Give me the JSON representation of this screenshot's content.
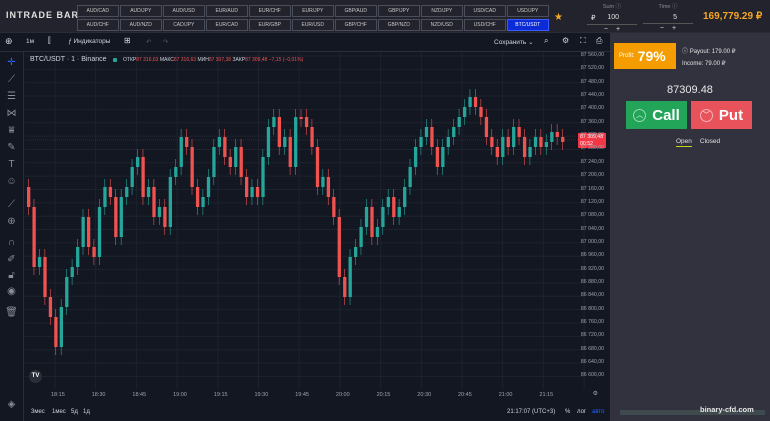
{
  "topbar": {
    "logo": "INTRADE BAR",
    "pairs_row1": [
      "AUD/CAD",
      "AUD/JPY",
      "AUD/USD",
      "EUR/AUD",
      "EUR/CHF",
      "EUR/JPY",
      "GBP/AUD",
      "GBP/JPY",
      "NZD/JPY",
      "USD/CAD",
      "USD/JPY"
    ],
    "pairs_row2": [
      "AUD/CHF",
      "AUD/NZD",
      "CAD/JPY",
      "EUR/CAD",
      "EUR/GBP",
      "EUR/USD",
      "GBP/CHF",
      "GBP/NZD",
      "NZD/USD",
      "USD/CHF",
      "BTC/USDT"
    ],
    "active_pair": "BTC/USDT",
    "sum": {
      "label": "Sum",
      "currency": "₽",
      "value": "100",
      "minus": "−",
      "plus": "+"
    },
    "time": {
      "label": "Time",
      "value": "5",
      "minus": "−",
      "plus": "+"
    },
    "balance": "169,779.29 ₽"
  },
  "toolbar": {
    "interval": "1м",
    "indicators": "Индикаторы",
    "save": "Сохранить"
  },
  "chart": {
    "title": "BTC/USDT · 1 · Binance",
    "ohlc": {
      "o_label": "ОТКР",
      "o": "87 316,63",
      "h_label": "МАКС",
      "h": "87 316,63",
      "l_label": "МИН",
      "l": "87 307,38",
      "c_label": "ЗАКР",
      "c": "87 309,48",
      "change": "−7,15 (−0,01%)"
    },
    "current_price": "87 309,48",
    "countdown": "00:52",
    "colors": {
      "up": "#26a69a",
      "down": "#ef5350",
      "bg": "#131722"
    }
  },
  "price_axis": [
    "87 560,00",
    "87 520,00",
    "87 480,00",
    "87 440,00",
    "87 400,00",
    "87 360,00",
    "87 320,00",
    "87 280,00",
    "87 240,00",
    "87 200,00",
    "87 160,00",
    "87 120,00",
    "87 080,00",
    "87 040,00",
    "87 000,00",
    "86 960,00",
    "86 920,00",
    "86 880,00",
    "86 840,00",
    "86 800,00",
    "86 760,00",
    "86 720,00",
    "86 680,00",
    "86 640,00",
    "86 600,00"
  ],
  "time_axis": [
    "18:15",
    "18:30",
    "18:45",
    "19:00",
    "19:15",
    "19:30",
    "19:45",
    "20:00",
    "20:15",
    "20:30",
    "20:45",
    "21:00",
    "21:15"
  ],
  "bottom": {
    "ranges": [
      "3мес",
      "1мес",
      "5д",
      "1д"
    ],
    "clock": "21:17:07 (UTC+3)",
    "percent": "%",
    "log": "лог",
    "auto": "авто"
  },
  "panel": {
    "profit_label": "Profit:",
    "profit_value": "79%",
    "payout": "Payout: 179.00 ₽",
    "income": "Income: 79.00 ₽",
    "price": "87309.48",
    "call": "Call",
    "put": "Put",
    "tab_open": "Open",
    "tab_closed": "Closed"
  },
  "watermark": "binary-cfd.com"
}
